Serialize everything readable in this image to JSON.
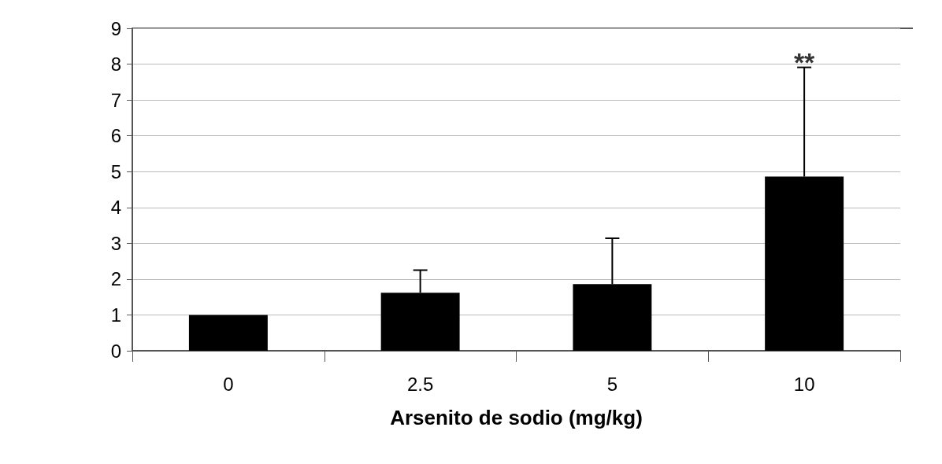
{
  "chart_data": {
    "type": "bar",
    "xlabel": "Arsenito de sodio (mg/kg)",
    "categories": [
      "0",
      "2.5",
      "5",
      "10"
    ],
    "values": [
      1.0,
      1.62,
      1.86,
      4.86
    ],
    "errors": [
      null,
      0.63,
      1.28,
      3.05
    ],
    "color": "#000000",
    "ylim": [
      0,
      9
    ],
    "yticks": [
      0,
      1,
      2,
      3,
      4,
      5,
      6,
      7,
      8,
      9
    ],
    "grid": "y",
    "annotations": [
      {
        "text": "**",
        "x": "10",
        "y": 7.91
      }
    ]
  }
}
